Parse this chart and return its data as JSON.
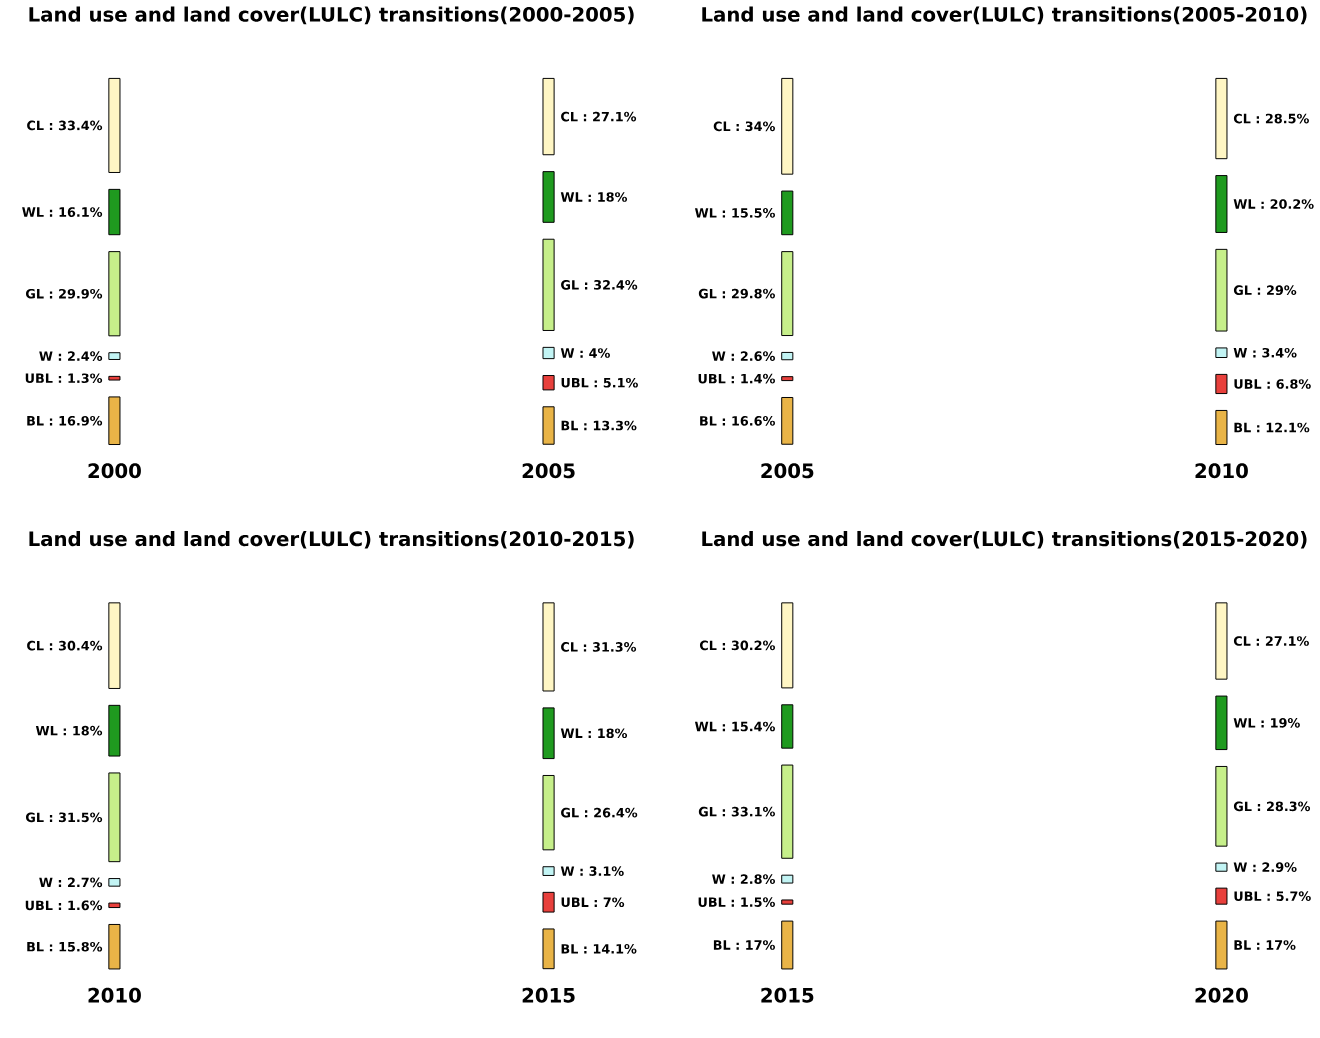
{
  "chart_data": [
    {
      "type": "other",
      "title": "Land use and land cover(LULC) transitions(2000-2005)",
      "categories": [
        "CL",
        "WL",
        "GL",
        "W",
        "UBL",
        "BL"
      ],
      "colors": [
        "#fff6c4",
        "#1f9a1f",
        "#c6ef8a",
        "#c2f4f4",
        "#e8403c",
        "#e9b447"
      ],
      "series": [
        {
          "name": "2000",
          "values": [
            33.4,
            16.1,
            29.9,
            2.4,
            1.3,
            16.9
          ],
          "value_labels": [
            ": 33.4%",
            ": 16.1%",
            ": 29.9%",
            ": 2.4%",
            ": 1.3%",
            ": 16.9%"
          ]
        },
        {
          "name": "2005",
          "values": [
            27.1,
            18,
            32.4,
            4,
            5.1,
            13.3
          ],
          "value_labels": [
            ": 27.1%",
            ": 18%",
            ": 32.4%",
            ": 4%",
            ": 5.1%",
            ": 13.3%"
          ]
        }
      ]
    },
    {
      "type": "other",
      "title": "Land use and land cover(LULC) transitions(2005-2010)",
      "categories": [
        "CL",
        "WL",
        "GL",
        "W",
        "UBL",
        "BL"
      ],
      "colors": [
        "#fff6c4",
        "#1f9a1f",
        "#c6ef8a",
        "#c2f4f4",
        "#e8403c",
        "#e9b447"
      ],
      "series": [
        {
          "name": "2005",
          "values": [
            34,
            15.5,
            29.8,
            2.6,
            1.4,
            16.6
          ],
          "value_labels": [
            ": 34%",
            ": 15.5%",
            ": 29.8%",
            ": 2.6%",
            ": 1.4%",
            ": 16.6%"
          ]
        },
        {
          "name": "2010",
          "values": [
            28.5,
            20.2,
            29,
            3.4,
            6.8,
            12.1
          ],
          "value_labels": [
            ": 28.5%",
            ": 20.2%",
            ": 29%",
            ": 3.4%",
            ": 6.8%",
            ": 12.1%"
          ]
        }
      ]
    },
    {
      "type": "other",
      "title": "Land use and land cover(LULC) transitions(2010-2015)",
      "categories": [
        "CL",
        "WL",
        "GL",
        "W",
        "UBL",
        "BL"
      ],
      "colors": [
        "#fff6c4",
        "#1f9a1f",
        "#c6ef8a",
        "#c2f4f4",
        "#e8403c",
        "#e9b447"
      ],
      "series": [
        {
          "name": "2010",
          "values": [
            30.4,
            18,
            31.5,
            2.7,
            1.6,
            15.8
          ],
          "value_labels": [
            ": 30.4%",
            ": 18%",
            ": 31.5%",
            ": 2.7%",
            ": 1.6%",
            ": 15.8%"
          ]
        },
        {
          "name": "2015",
          "values": [
            31.3,
            18,
            26.4,
            3.1,
            7,
            14.1
          ],
          "value_labels": [
            ": 31.3%",
            ": 18%",
            ": 26.4%",
            ": 3.1%",
            ": 7%",
            ": 14.1%"
          ]
        }
      ]
    },
    {
      "type": "other",
      "title": "Land use and land cover(LULC) transitions(2015-2020)",
      "categories": [
        "CL",
        "WL",
        "GL",
        "W",
        "UBL",
        "BL"
      ],
      "colors": [
        "#fff6c4",
        "#1f9a1f",
        "#c6ef8a",
        "#c2f4f4",
        "#e8403c",
        "#e9b447"
      ],
      "series": [
        {
          "name": "2015",
          "values": [
            30.2,
            15.4,
            33.1,
            2.8,
            1.5,
            17
          ],
          "value_labels": [
            ": 30.2%",
            ": 15.4%",
            ": 33.1%",
            ": 2.8%",
            ": 1.5%",
            ": 17%"
          ]
        },
        {
          "name": "2020",
          "values": [
            27.1,
            19,
            28.3,
            2.9,
            5.7,
            17
          ],
          "value_labels": [
            ": 27.1%",
            ": 19%",
            ": 28.3%",
            ": 2.9%",
            ": 5.7%",
            ": 17%"
          ]
        }
      ]
    }
  ]
}
